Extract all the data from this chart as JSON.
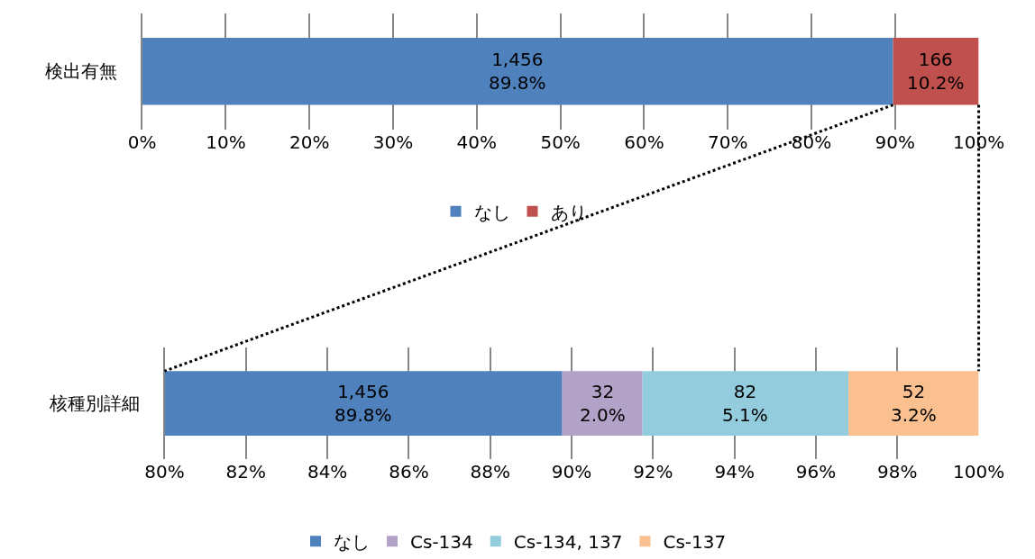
{
  "chart_data": [
    {
      "type": "bar",
      "orientation": "horizontal",
      "stacked": true,
      "categories": [
        "検出有無"
      ],
      "series": [
        {
          "name": "なし",
          "color": "#4f81bd",
          "values": [
            89.77
          ],
          "value_labels": [
            "1,456\n89.8%"
          ]
        },
        {
          "name": "あり",
          "color": "#c0504d",
          "values": [
            10.23
          ],
          "value_labels": [
            "166\n10.2%"
          ]
        }
      ],
      "xlim": [
        0,
        100
      ],
      "xticks": [
        {
          "value": 0,
          "label": "0%"
        },
        {
          "value": 10,
          "label": "10%"
        },
        {
          "value": 20,
          "label": "20%"
        },
        {
          "value": 30,
          "label": "30%"
        },
        {
          "value": 40,
          "label": "40%"
        },
        {
          "value": 50,
          "label": "50%"
        },
        {
          "value": 60,
          "label": "60%"
        },
        {
          "value": 70,
          "label": "70%"
        },
        {
          "value": 80,
          "label": "80%"
        },
        {
          "value": 90,
          "label": "90%"
        },
        {
          "value": 100,
          "label": "100%"
        }
      ],
      "grid": "x",
      "legend": "bottom"
    },
    {
      "type": "bar",
      "orientation": "horizontal",
      "categories": [
        "核種別詳細"
      ],
      "series": [
        {
          "name": "なし",
          "color": "#4f81bd",
          "values": [
            89.77
          ],
          "base": [
            0
          ],
          "value_labels": [
            "1,456\n89.8%"
          ]
        },
        {
          "name": "Cs-134",
          "color": "#b3a2c7",
          "values": [
            1.97
          ],
          "base": [
            89.77
          ],
          "value_labels": [
            "32\n2.0%"
          ]
        },
        {
          "name": "Cs-134, 137",
          "color": "#93cddd",
          "values": [
            5.06
          ],
          "base": [
            91.74
          ],
          "value_labels": [
            "82\n5.1%"
          ]
        },
        {
          "name": "Cs-137",
          "color": "#fac090",
          "values": [
            3.2
          ],
          "base": [
            96.8
          ],
          "value_labels": [
            "52\n3.2%"
          ]
        }
      ],
      "xlim": [
        80,
        100
      ],
      "xticks": [
        {
          "value": 80,
          "label": "80%"
        },
        {
          "value": 82,
          "label": "82%"
        },
        {
          "value": 84,
          "label": "84%"
        },
        {
          "value": 86,
          "label": "86%"
        },
        {
          "value": 88,
          "label": "88%"
        },
        {
          "value": 90,
          "label": "90%"
        },
        {
          "value": 92,
          "label": "92%"
        },
        {
          "value": 94,
          "label": "94%"
        },
        {
          "value": 96,
          "label": "96%"
        },
        {
          "value": 98,
          "label": "98%"
        },
        {
          "value": 100,
          "label": "100%"
        }
      ],
      "grid": "x",
      "legend": "bottom"
    }
  ]
}
